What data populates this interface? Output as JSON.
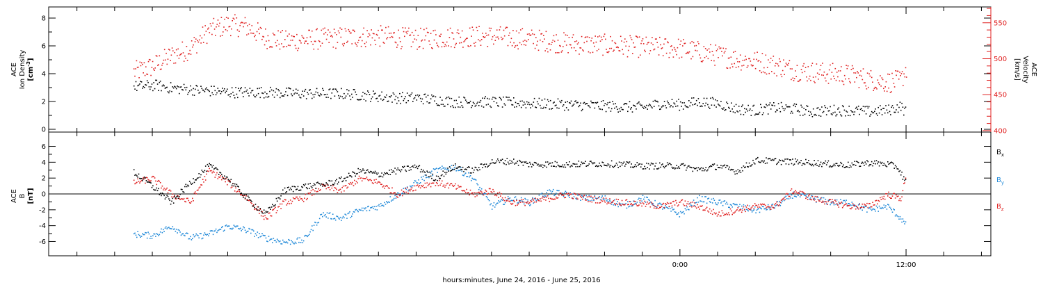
{
  "chart_data": [
    {
      "type": "scatter",
      "panel": "top",
      "y_axis_left": {
        "label_lines": [
          "ACE",
          "Ion Density"
        ],
        "unit_base": "[cm",
        "unit_sup": "-3",
        "unit_end": "]",
        "range": [
          -0.2,
          8.8
        ],
        "ticks": [
          0,
          2,
          4,
          6,
          8
        ],
        "color": "#000000"
      },
      "y_axis_right": {
        "label_lines": [
          "ACE",
          "Velocity"
        ],
        "unit": "[km/s]",
        "range": [
          398,
          572
        ],
        "ticks": [
          400,
          450,
          500,
          550
        ],
        "color": "#e02020"
      },
      "series": [
        {
          "axis": "left",
          "color": "#000000",
          "x_hours": [
            -29.0,
            -27.8,
            -27.0,
            -26.0,
            -25.0,
            -24.0,
            -22.0,
            -20.0,
            -18.0,
            -16.0,
            -15.0,
            -14.0,
            -12.0,
            -10.0,
            -8.0,
            -6.0,
            -4.0,
            -2.0,
            -1.0,
            0.0,
            0.5,
            1.0,
            2.0,
            3.0,
            4.0,
            5.0,
            6.0,
            7.0,
            8.0,
            9.0,
            10.0,
            11.0,
            11.7,
            12.0
          ],
          "y": [
            3.1,
            3.2,
            3.0,
            2.9,
            2.8,
            2.7,
            2.7,
            2.6,
            2.6,
            2.4,
            2.3,
            2.3,
            2.0,
            2.0,
            1.9,
            1.8,
            1.7,
            1.6,
            1.9,
            1.8,
            1.9,
            2.0,
            1.9,
            1.5,
            1.4,
            1.6,
            1.5,
            1.3,
            1.4,
            1.4,
            1.3,
            1.4,
            1.7,
            1.2
          ],
          "spread": 0.8
        },
        {
          "axis": "right",
          "color": "#e02020",
          "x_hours": [
            -29.0,
            -28.0,
            -27.0,
            -26.0,
            -25.0,
            -24.0,
            -23.0,
            -22.0,
            -21.0,
            -20.0,
            -18.0,
            -16.0,
            -14.0,
            -12.0,
            -10.0,
            -8.0,
            -6.0,
            -4.0,
            -2.0,
            0.0,
            2.0,
            3.0,
            4.0,
            5.0,
            6.0,
            7.0,
            8.0,
            9.0,
            10.0,
            11.0,
            11.7,
            12.0
          ],
          "y": [
            482,
            490,
            505,
            515,
            540,
            548,
            545,
            530,
            525,
            527,
            530,
            532,
            528,
            531,
            532,
            528,
            522,
            520,
            517,
            515,
            505,
            500,
            497,
            492,
            485,
            482,
            480,
            478,
            472,
            468,
            470,
            488
          ],
          "spread": 30
        }
      ]
    },
    {
      "type": "scatter",
      "panel": "bottom",
      "y_axis_left": {
        "label_lines": [
          "ACE",
          "B"
        ],
        "unit": "[nT]",
        "range": [
          -7.8,
          7.8
        ],
        "ticks": [
          -6,
          -4,
          -2,
          0,
          2,
          4,
          6
        ],
        "color": "#000000"
      },
      "zero_line": 0,
      "legend": [
        {
          "base": "B",
          "sub": "x",
          "color": "#000000"
        },
        {
          "base": "B",
          "sub": "y",
          "color": "#1e88d8"
        },
        {
          "base": "B",
          "sub": "z",
          "color": "#e02020"
        }
      ],
      "series": [
        {
          "name": "Bx",
          "color": "#000000",
          "x_hours": [
            -29.0,
            -28.0,
            -27.0,
            -26.0,
            -25.0,
            -24.0,
            -23.0,
            -22.0,
            -21.0,
            -20.0,
            -19.0,
            -18.0,
            -17.0,
            -16.0,
            -15.0,
            -14.0,
            -13.0,
            -12.0,
            -11.0,
            -10.0,
            -9.0,
            -8.0,
            -6.0,
            -4.0,
            -2.0,
            0.0,
            1.0,
            2.0,
            3.0,
            4.0,
            5.0,
            6.0,
            7.0,
            8.0,
            9.0,
            10.0,
            11.0,
            11.5,
            12.0
          ],
          "y": [
            2.8,
            1.0,
            -1.0,
            1.5,
            3.6,
            2.0,
            -0.5,
            -2.5,
            0.5,
            1.0,
            1.2,
            1.8,
            3.0,
            2.5,
            3.0,
            3.5,
            2.0,
            3.5,
            3.0,
            4.1,
            4.2,
            3.8,
            3.8,
            3.9,
            3.6,
            3.6,
            3.1,
            3.6,
            2.9,
            4.3,
            4.2,
            4.1,
            4.0,
            3.8,
            3.7,
            4.0,
            3.8,
            3.5,
            1.5
          ],
          "spread": 0.8
        },
        {
          "name": "By",
          "color": "#1e88d8",
          "x_hours": [
            -29.0,
            -28.0,
            -27.0,
            -26.0,
            -25.0,
            -24.0,
            -23.0,
            -22.0,
            -21.0,
            -20.0,
            -19.0,
            -18.0,
            -17.0,
            -16.0,
            -15.0,
            -14.0,
            -13.0,
            -12.0,
            -11.0,
            -10.0,
            -9.0,
            -8.0,
            -7.0,
            -6.0,
            -5.0,
            -4.0,
            -3.0,
            -2.0,
            -1.0,
            0.0,
            1.0,
            2.0,
            3.0,
            4.0,
            5.0,
            6.0,
            7.0,
            8.0,
            9.0,
            10.0,
            11.0,
            11.7,
            12.0
          ],
          "y": [
            -5.0,
            -5.2,
            -4.0,
            -5.5,
            -5.0,
            -4.0,
            -4.5,
            -5.5,
            -6.0,
            -5.8,
            -2.5,
            -3.0,
            -2.0,
            -1.5,
            0.0,
            1.5,
            3.0,
            3.5,
            2.0,
            -1.5,
            -0.5,
            -1.0,
            0.3,
            0.0,
            -0.5,
            -0.5,
            -1.5,
            -0.5,
            -1.5,
            -2.5,
            -0.5,
            -1.0,
            -1.5,
            -2.0,
            -1.5,
            0.0,
            -0.5,
            -1.0,
            -1.0,
            -2.0,
            -1.5,
            -3.0,
            -4.0
          ],
          "spread": 0.8
        },
        {
          "name": "Bz",
          "color": "#e02020",
          "x_hours": [
            -29.0,
            -28.0,
            -27.0,
            -26.0,
            -25.0,
            -24.0,
            -23.0,
            -22.0,
            -21.0,
            -20.0,
            -19.0,
            -18.0,
            -17.0,
            -16.0,
            -15.0,
            -14.0,
            -13.0,
            -12.0,
            -11.0,
            -10.0,
            -9.0,
            -8.0,
            -7.0,
            -6.0,
            -5.0,
            -4.0,
            -3.0,
            -2.0,
            -1.0,
            0.0,
            1.0,
            2.0,
            3.0,
            4.0,
            5.0,
            6.0,
            7.0,
            8.0,
            9.0,
            10.0,
            11.0,
            11.7,
            12.0
          ],
          "y": [
            1.5,
            2.0,
            0.0,
            -1.0,
            3.0,
            1.5,
            -0.5,
            -3.0,
            -1.0,
            -0.5,
            1.0,
            0.5,
            2.0,
            1.5,
            0.0,
            1.0,
            1.5,
            1.0,
            0.0,
            0.5,
            -1.0,
            -1.0,
            -0.5,
            0.0,
            -0.5,
            -0.8,
            -1.0,
            -1.2,
            -1.5,
            -1.0,
            -1.5,
            -2.5,
            -2.0,
            -1.5,
            -1.5,
            0.5,
            -0.5,
            -1.0,
            -1.5,
            -1.5,
            0.0,
            -0.5,
            2.5
          ],
          "spread": 0.8
        }
      ]
    }
  ],
  "x_axis": {
    "range_hours": [
      -33.5,
      16.5
    ],
    "major_ticks_hours": [
      0,
      12
    ],
    "tick_labels": [
      "0:00",
      "12:00"
    ],
    "minor_tick_step_hours": 2,
    "xlabel": "hours:minutes, June 24, 2016 - June 25, 2016"
  },
  "colors": {
    "black_series": "#000000",
    "velocity": "#e02020",
    "by": "#1e88d8",
    "bz": "#e02020"
  }
}
